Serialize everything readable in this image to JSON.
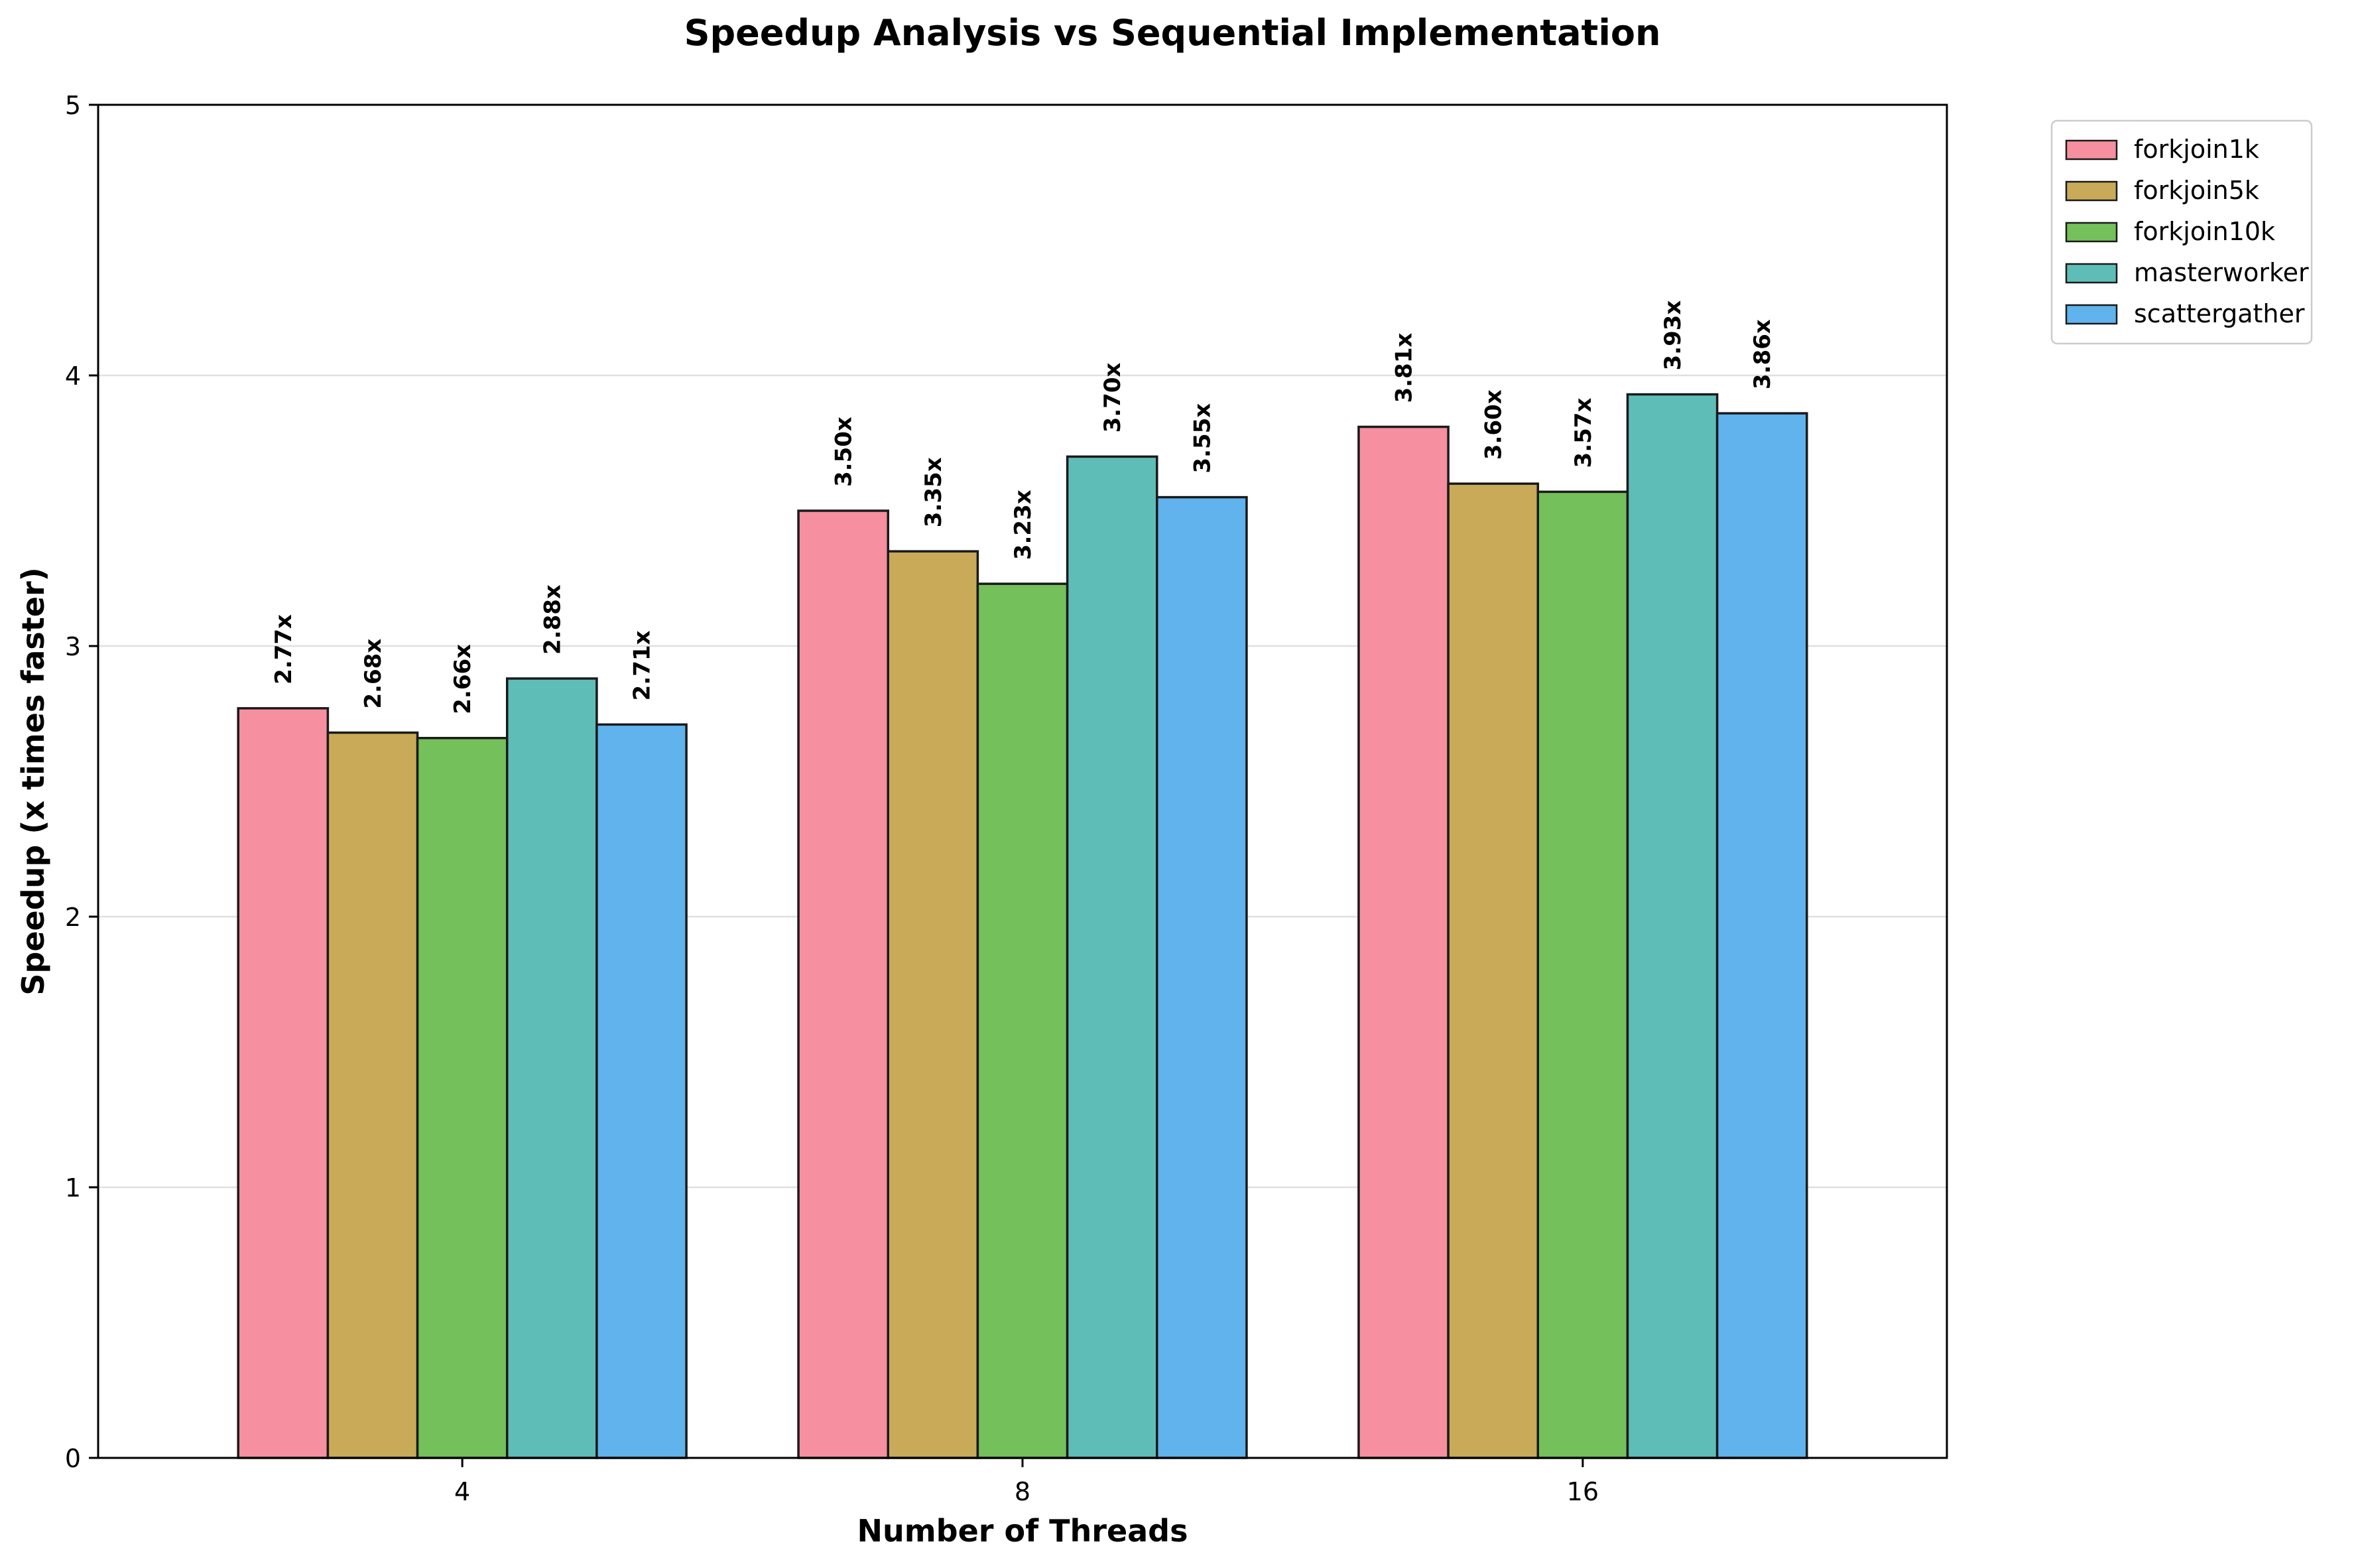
{
  "chart_data": {
    "type": "bar",
    "title": "Speedup Analysis vs Sequential Implementation",
    "xlabel": "Number of Threads",
    "ylabel": "Speedup (x times faster)",
    "categories": [
      "4",
      "8",
      "16"
    ],
    "ylim": [
      0,
      5
    ],
    "yticks": [
      0,
      1,
      2,
      3,
      4,
      5
    ],
    "grid": "y",
    "legend_position": "outside top-right",
    "label_suffix": "x",
    "series": [
      {
        "name": "forkjoin1k",
        "color": "#f68f9f",
        "values": [
          2.77,
          3.5,
          3.81
        ]
      },
      {
        "name": "forkjoin5k",
        "color": "#c8aa58",
        "values": [
          2.68,
          3.35,
          3.6
        ]
      },
      {
        "name": "forkjoin10k",
        "color": "#74c05a",
        "values": [
          2.66,
          3.23,
          3.57
        ]
      },
      {
        "name": "masterworker",
        "color": "#5fbdb7",
        "values": [
          2.88,
          3.7,
          3.93
        ]
      },
      {
        "name": "scattergather",
        "color": "#60b3ec",
        "values": [
          2.71,
          3.55,
          3.86
        ]
      }
    ]
  }
}
